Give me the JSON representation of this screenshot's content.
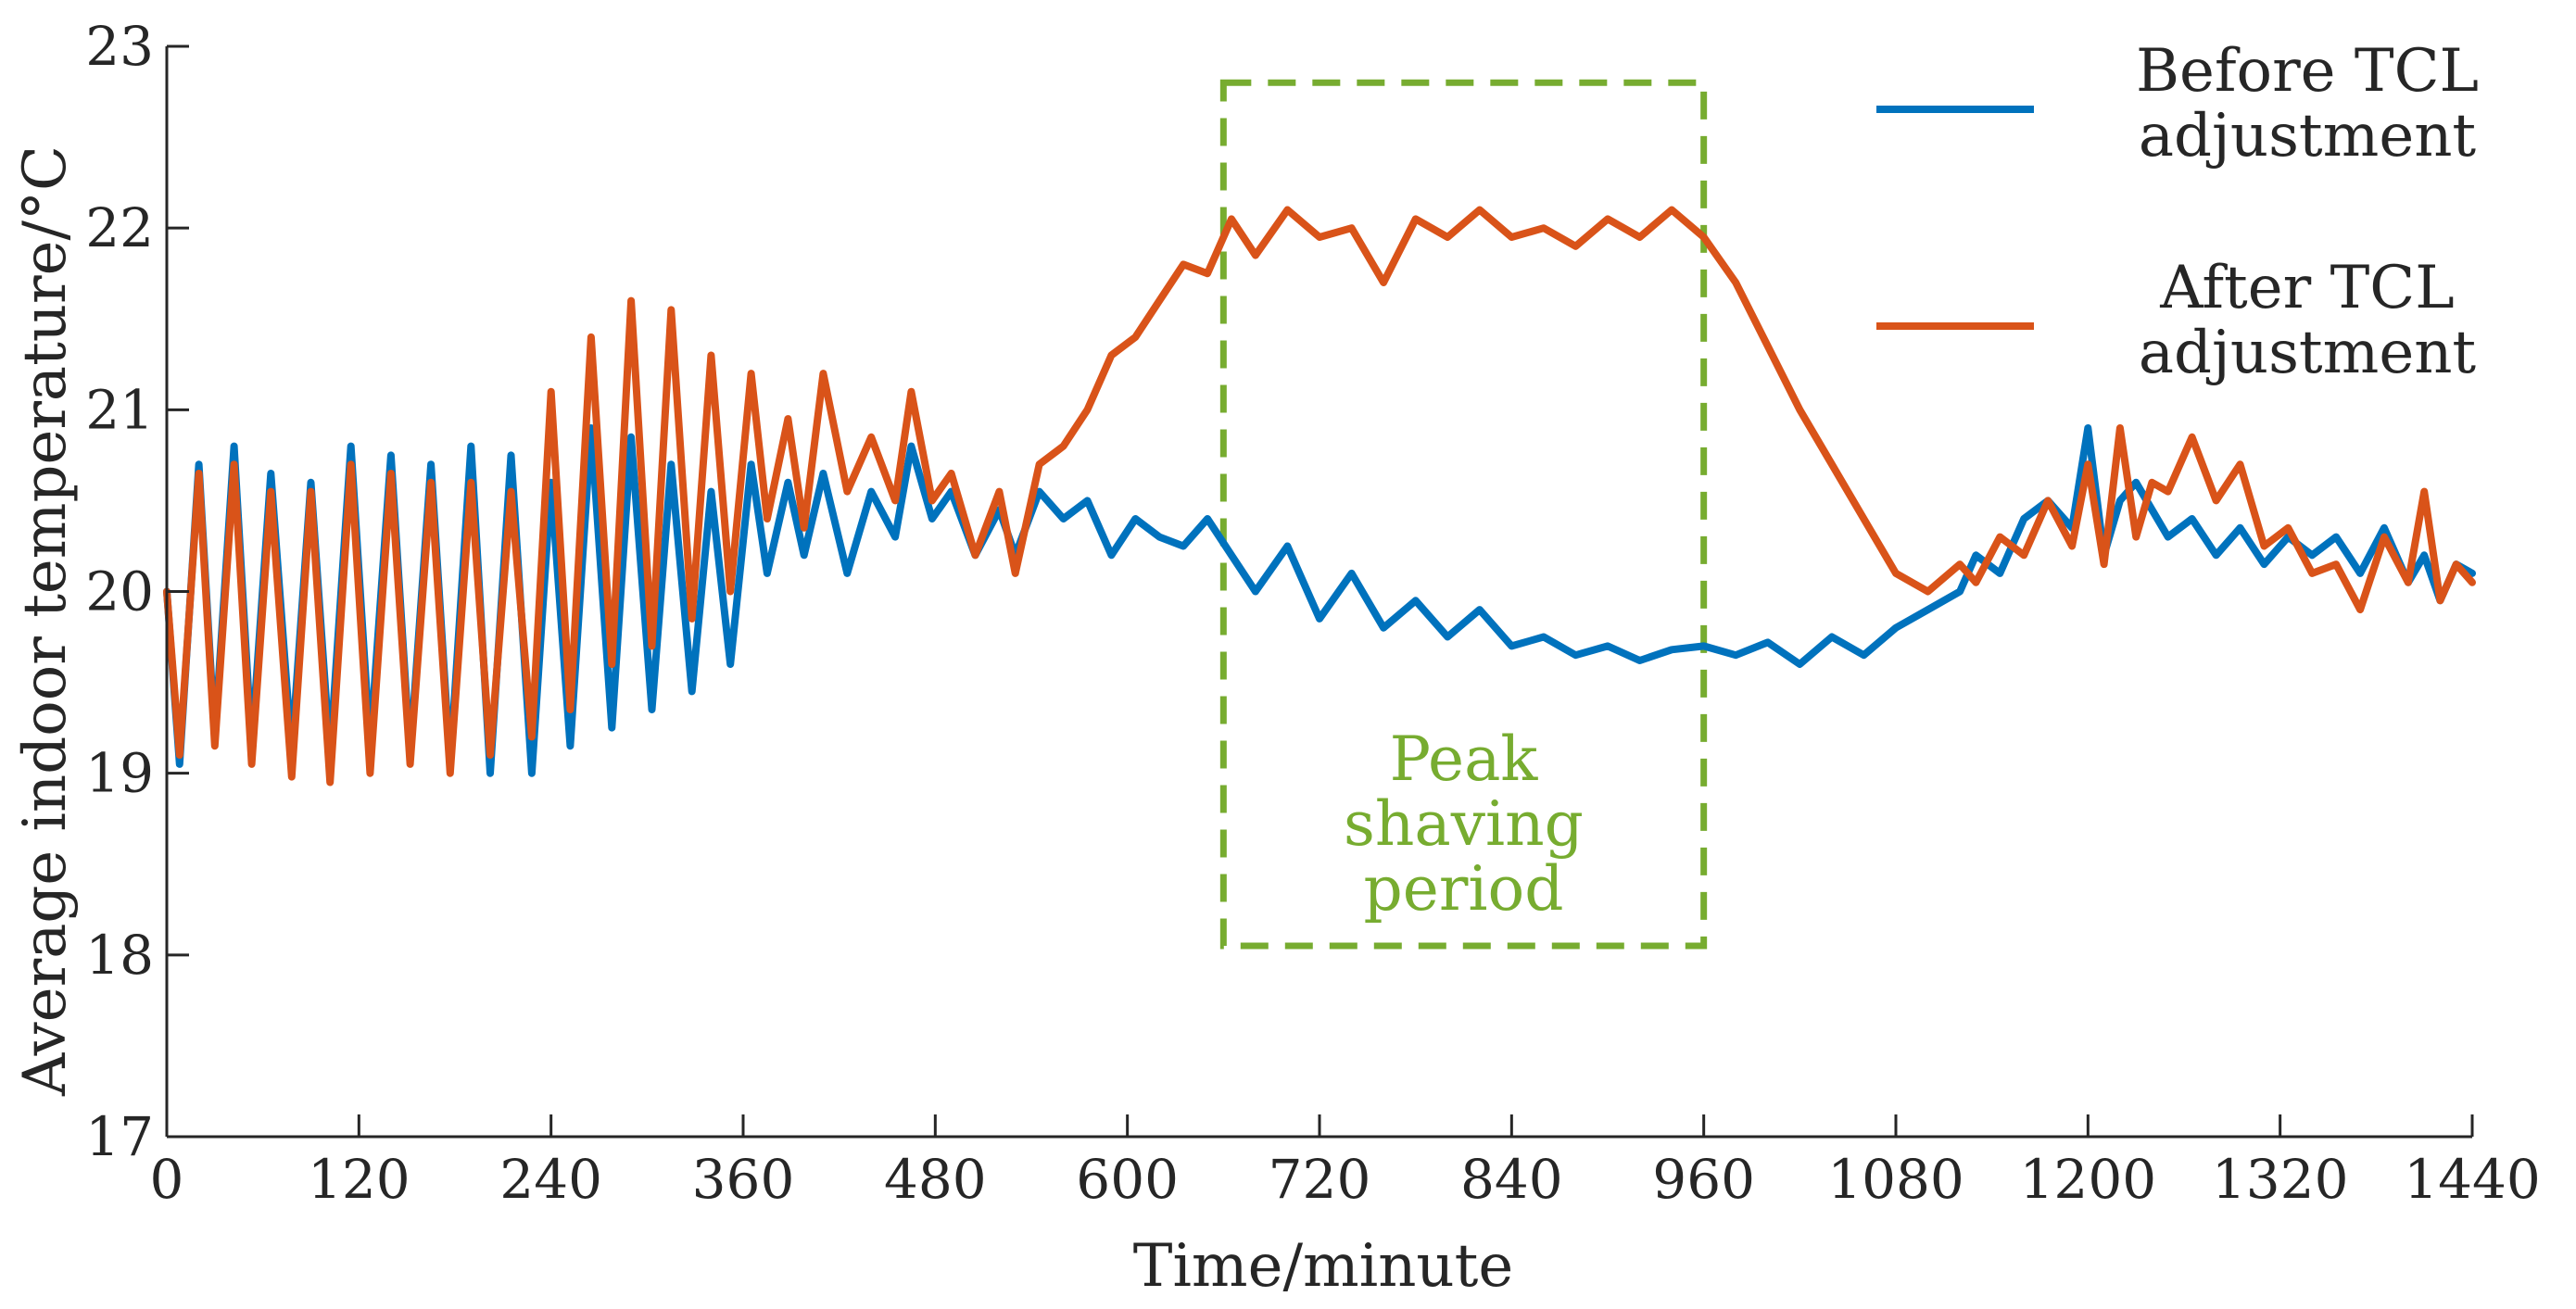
{
  "chart_data": {
    "type": "line",
    "title": "",
    "xlabel": "Time/minute",
    "ylabel": "Average indoor temperature/°C",
    "xlim": [
      0,
      1440
    ],
    "ylim": [
      17,
      23
    ],
    "xticks": [
      0,
      120,
      240,
      360,
      480,
      600,
      720,
      840,
      960,
      1080,
      1200,
      1320,
      1440
    ],
    "xtick_labels": [
      "0",
      "120",
      "240",
      "360",
      "480",
      "600",
      "720",
      "840",
      "960",
      "1080",
      "1200",
      "1320",
      "1440"
    ],
    "yticks": [
      17,
      18,
      19,
      20,
      21,
      22,
      23
    ],
    "ytick_labels": [
      "17",
      "18",
      "19",
      "20",
      "21",
      "22",
      "23"
    ],
    "grid": false,
    "legend_position": "top-right",
    "colors": {
      "before": "#0072BD",
      "after": "#D95319",
      "annotation": "#77AC30"
    },
    "series": [
      {
        "name": "Before TCL adjustment",
        "label_lines": [
          "Before TCL",
          "adjustment"
        ],
        "color": "#0072BD",
        "x": [
          0,
          8,
          20,
          30,
          42,
          53,
          65,
          78,
          90,
          102,
          115,
          127,
          140,
          152,
          165,
          177,
          190,
          202,
          215,
          228,
          240,
          252,
          265,
          278,
          290,
          303,
          315,
          328,
          340,
          352,
          365,
          375,
          388,
          398,
          410,
          425,
          440,
          455,
          465,
          478,
          490,
          505,
          520,
          530,
          545,
          560,
          575,
          590,
          605,
          620,
          635,
          650,
          665,
          680,
          700,
          720,
          740,
          760,
          780,
          800,
          820,
          840,
          860,
          880,
          900,
          920,
          940,
          960,
          980,
          1000,
          1020,
          1040,
          1060,
          1080,
          1100,
          1120,
          1130,
          1145,
          1160,
          1175,
          1190,
          1200,
          1210,
          1220,
          1230,
          1240,
          1250,
          1265,
          1280,
          1295,
          1310,
          1325,
          1340,
          1355,
          1370,
          1385,
          1400,
          1410,
          1420,
          1430,
          1440
        ],
        "values": [
          20.0,
          19.05,
          20.7,
          19.2,
          20.8,
          19.15,
          20.65,
          19.12,
          20.6,
          19.1,
          20.8,
          19.15,
          20.75,
          19.1,
          20.7,
          19.05,
          20.8,
          19.0,
          20.75,
          19.0,
          20.6,
          19.15,
          20.9,
          19.25,
          20.85,
          19.35,
          20.7,
          19.45,
          20.55,
          19.6,
          20.7,
          20.1,
          20.6,
          20.2,
          20.65,
          20.1,
          20.55,
          20.3,
          20.8,
          20.4,
          20.55,
          20.2,
          20.45,
          20.2,
          20.55,
          20.4,
          20.5,
          20.2,
          20.4,
          20.3,
          20.25,
          20.4,
          20.2,
          20.0,
          20.25,
          19.85,
          20.1,
          19.8,
          19.95,
          19.75,
          19.9,
          19.7,
          19.75,
          19.65,
          19.7,
          19.62,
          19.68,
          19.7,
          19.65,
          19.72,
          19.6,
          19.75,
          19.65,
          19.8,
          19.9,
          20.0,
          20.2,
          20.1,
          20.4,
          20.5,
          20.35,
          20.9,
          20.2,
          20.5,
          20.6,
          20.45,
          20.3,
          20.4,
          20.2,
          20.35,
          20.15,
          20.3,
          20.2,
          20.3,
          20.1,
          20.35,
          20.05,
          20.2,
          19.95,
          20.15,
          20.1
        ],
        "style": "solid"
      },
      {
        "name": "After TCL adjustment",
        "label_lines": [
          "After TCL",
          "adjustment"
        ],
        "color": "#D95319",
        "x": [
          0,
          8,
          20,
          30,
          42,
          53,
          65,
          78,
          90,
          102,
          115,
          127,
          140,
          152,
          165,
          177,
          190,
          202,
          215,
          228,
          240,
          252,
          265,
          278,
          290,
          303,
          315,
          328,
          340,
          352,
          365,
          375,
          388,
          398,
          410,
          425,
          440,
          455,
          465,
          478,
          490,
          505,
          520,
          530,
          545,
          560,
          575,
          590,
          605,
          620,
          635,
          650,
          665,
          680,
          700,
          720,
          740,
          760,
          780,
          800,
          820,
          840,
          860,
          880,
          900,
          920,
          940,
          960,
          980,
          1000,
          1020,
          1040,
          1060,
          1080,
          1100,
          1120,
          1130,
          1145,
          1160,
          1175,
          1190,
          1200,
          1210,
          1220,
          1230,
          1240,
          1250,
          1265,
          1280,
          1295,
          1310,
          1325,
          1340,
          1355,
          1370,
          1385,
          1400,
          1410,
          1420,
          1430,
          1440
        ],
        "values": [
          20.0,
          19.1,
          20.65,
          19.15,
          20.7,
          19.05,
          20.55,
          18.98,
          20.55,
          18.95,
          20.7,
          19.0,
          20.65,
          19.05,
          20.6,
          19.0,
          20.6,
          19.1,
          20.55,
          19.2,
          21.1,
          19.35,
          21.4,
          19.6,
          21.6,
          19.7,
          21.55,
          19.85,
          21.3,
          20.0,
          21.2,
          20.4,
          20.95,
          20.35,
          21.2,
          20.55,
          20.85,
          20.5,
          21.1,
          20.5,
          20.65,
          20.2,
          20.55,
          20.1,
          20.7,
          20.8,
          21.0,
          21.3,
          21.4,
          21.6,
          21.8,
          21.75,
          22.05,
          21.85,
          22.1,
          21.95,
          22.0,
          21.7,
          22.05,
          21.95,
          22.1,
          21.95,
          22.0,
          21.9,
          22.05,
          21.95,
          22.1,
          21.95,
          21.7,
          21.35,
          21.0,
          20.7,
          20.4,
          20.1,
          20.0,
          20.15,
          20.05,
          20.3,
          20.2,
          20.5,
          20.25,
          20.7,
          20.15,
          20.9,
          20.3,
          20.6,
          20.55,
          20.85,
          20.5,
          20.7,
          20.25,
          20.35,
          20.1,
          20.15,
          19.9,
          20.3,
          20.05,
          20.55,
          19.95,
          20.15,
          20.05
        ],
        "style": "solid"
      }
    ],
    "annotations": [
      {
        "type": "dashed-rectangle",
        "x_range": [
          660,
          960
        ],
        "y_range": [
          18.05,
          22.8
        ],
        "text_lines": [
          "Peak",
          "shaving",
          "period"
        ],
        "color": "#77AC30"
      }
    ]
  }
}
